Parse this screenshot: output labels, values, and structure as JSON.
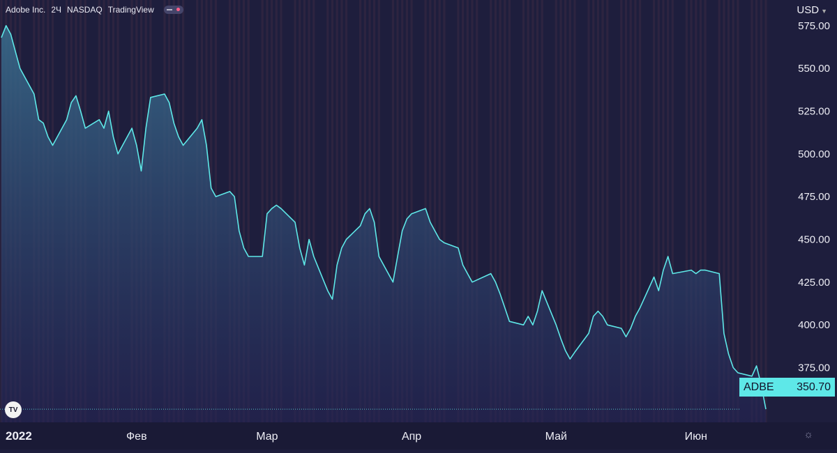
{
  "header": {
    "symbol": "Adobe Inc.",
    "interval": "2Ч",
    "exchange": "NASDAQ",
    "source": "TradingView"
  },
  "currency": "USD",
  "price_tag": {
    "ticker": "ADBE",
    "price": "350.70"
  },
  "logo_text": "TV",
  "colors": {
    "background": "#1e1e3d",
    "line": "#5ee8e8",
    "area_top": "#3a6f8f",
    "area_bottom": "#242455",
    "session_stripe": "#3a2a44"
  },
  "icons": {
    "settings": "gear-icon",
    "logo": "tradingview-logo-icon"
  },
  "chart_data": {
    "type": "area",
    "title": "",
    "xlabel": "",
    "ylabel": "",
    "grid": false,
    "ylim": [
      343,
      590
    ],
    "y_ticks": [
      375,
      400,
      425,
      450,
      475,
      500,
      525,
      550,
      575
    ],
    "y_tick_labels": [
      "375.00",
      "400.00",
      "425.00",
      "450.00",
      "475.00",
      "500.00",
      "525.00",
      "550.00",
      "575.00"
    ],
    "x_range": [
      "2022-01-03",
      "2022-06-16"
    ],
    "x_ticks": [
      {
        "date": "2022-01-03",
        "label": "2022"
      },
      {
        "date": "2022-02-01",
        "label": "Фев"
      },
      {
        "date": "2022-03-01",
        "label": "Мар"
      },
      {
        "date": "2022-04-01",
        "label": "Апр"
      },
      {
        "date": "2022-05-02",
        "label": "Май"
      },
      {
        "date": "2022-06-01",
        "label": "Июн"
      }
    ],
    "last_price": 350.7,
    "series": [
      {
        "values": [
          [
            "2022-01-03",
            568
          ],
          [
            "2022-01-04",
            575
          ],
          [
            "2022-01-05",
            570
          ],
          [
            "2022-01-06",
            560
          ],
          [
            "2022-01-07",
            550
          ],
          [
            "2022-01-10",
            535
          ],
          [
            "2022-01-11",
            520
          ],
          [
            "2022-01-12",
            518
          ],
          [
            "2022-01-13",
            510
          ],
          [
            "2022-01-14",
            505
          ],
          [
            "2022-01-17",
            520
          ],
          [
            "2022-01-18",
            530
          ],
          [
            "2022-01-19",
            534
          ],
          [
            "2022-01-20",
            525
          ],
          [
            "2022-01-21",
            515
          ],
          [
            "2022-01-24",
            520
          ],
          [
            "2022-01-25",
            515
          ],
          [
            "2022-01-26",
            525
          ],
          [
            "2022-01-27",
            510
          ],
          [
            "2022-01-28",
            500
          ],
          [
            "2022-01-31",
            515
          ],
          [
            "2022-02-01",
            505
          ],
          [
            "2022-02-02",
            490
          ],
          [
            "2022-02-03",
            515
          ],
          [
            "2022-02-04",
            533
          ],
          [
            "2022-02-07",
            535
          ],
          [
            "2022-02-08",
            530
          ],
          [
            "2022-02-09",
            518
          ],
          [
            "2022-02-10",
            510
          ],
          [
            "2022-02-11",
            505
          ],
          [
            "2022-02-14",
            515
          ],
          [
            "2022-02-15",
            520
          ],
          [
            "2022-02-16",
            505
          ],
          [
            "2022-02-17",
            480
          ],
          [
            "2022-02-18",
            475
          ],
          [
            "2022-02-21",
            478
          ],
          [
            "2022-02-22",
            475
          ],
          [
            "2022-02-23",
            455
          ],
          [
            "2022-02-24",
            445
          ],
          [
            "2022-02-25",
            440
          ],
          [
            "2022-02-28",
            440
          ],
          [
            "2022-03-01",
            465
          ],
          [
            "2022-03-02",
            468
          ],
          [
            "2022-03-03",
            470
          ],
          [
            "2022-03-04",
            468
          ],
          [
            "2022-03-07",
            460
          ],
          [
            "2022-03-08",
            445
          ],
          [
            "2022-03-09",
            435
          ],
          [
            "2022-03-10",
            450
          ],
          [
            "2022-03-11",
            440
          ],
          [
            "2022-03-14",
            420
          ],
          [
            "2022-03-15",
            415
          ],
          [
            "2022-03-16",
            435
          ],
          [
            "2022-03-17",
            445
          ],
          [
            "2022-03-18",
            450
          ],
          [
            "2022-03-21",
            458
          ],
          [
            "2022-03-22",
            465
          ],
          [
            "2022-03-23",
            468
          ],
          [
            "2022-03-24",
            460
          ],
          [
            "2022-03-25",
            440
          ],
          [
            "2022-03-28",
            425
          ],
          [
            "2022-03-29",
            440
          ],
          [
            "2022-03-30",
            455
          ],
          [
            "2022-03-31",
            462
          ],
          [
            "2022-04-01",
            465
          ],
          [
            "2022-04-04",
            468
          ],
          [
            "2022-04-05",
            460
          ],
          [
            "2022-04-06",
            455
          ],
          [
            "2022-04-07",
            450
          ],
          [
            "2022-04-08",
            448
          ],
          [
            "2022-04-11",
            445
          ],
          [
            "2022-04-12",
            435
          ],
          [
            "2022-04-13",
            430
          ],
          [
            "2022-04-14",
            425
          ],
          [
            "2022-04-18",
            430
          ],
          [
            "2022-04-19",
            425
          ],
          [
            "2022-04-20",
            418
          ],
          [
            "2022-04-21",
            410
          ],
          [
            "2022-04-22",
            402
          ],
          [
            "2022-04-25",
            400
          ],
          [
            "2022-04-26",
            405
          ],
          [
            "2022-04-27",
            400
          ],
          [
            "2022-04-28",
            408
          ],
          [
            "2022-04-29",
            420
          ],
          [
            "2022-05-02",
            400
          ],
          [
            "2022-05-03",
            392
          ],
          [
            "2022-05-04",
            385
          ],
          [
            "2022-05-05",
            380
          ],
          [
            "2022-05-06",
            384
          ],
          [
            "2022-05-09",
            395
          ],
          [
            "2022-05-10",
            405
          ],
          [
            "2022-05-11",
            408
          ],
          [
            "2022-05-12",
            405
          ],
          [
            "2022-05-13",
            400
          ],
          [
            "2022-05-16",
            398
          ],
          [
            "2022-05-17",
            393
          ],
          [
            "2022-05-18",
            398
          ],
          [
            "2022-05-19",
            405
          ],
          [
            "2022-05-20",
            410
          ],
          [
            "2022-05-23",
            428
          ],
          [
            "2022-05-24",
            420
          ],
          [
            "2022-05-25",
            432
          ],
          [
            "2022-05-26",
            440
          ],
          [
            "2022-05-27",
            430
          ],
          [
            "2022-05-31",
            432
          ],
          [
            "2022-06-01",
            430
          ],
          [
            "2022-06-02",
            432
          ],
          [
            "2022-06-03",
            432
          ],
          [
            "2022-06-06",
            430
          ],
          [
            "2022-06-07",
            395
          ],
          [
            "2022-06-08",
            383
          ],
          [
            "2022-06-09",
            375
          ],
          [
            "2022-06-10",
            372
          ],
          [
            "2022-06-13",
            370
          ],
          [
            "2022-06-14",
            376
          ],
          [
            "2022-06-15",
            365
          ],
          [
            "2022-06-16",
            350.7
          ]
        ]
      }
    ]
  }
}
